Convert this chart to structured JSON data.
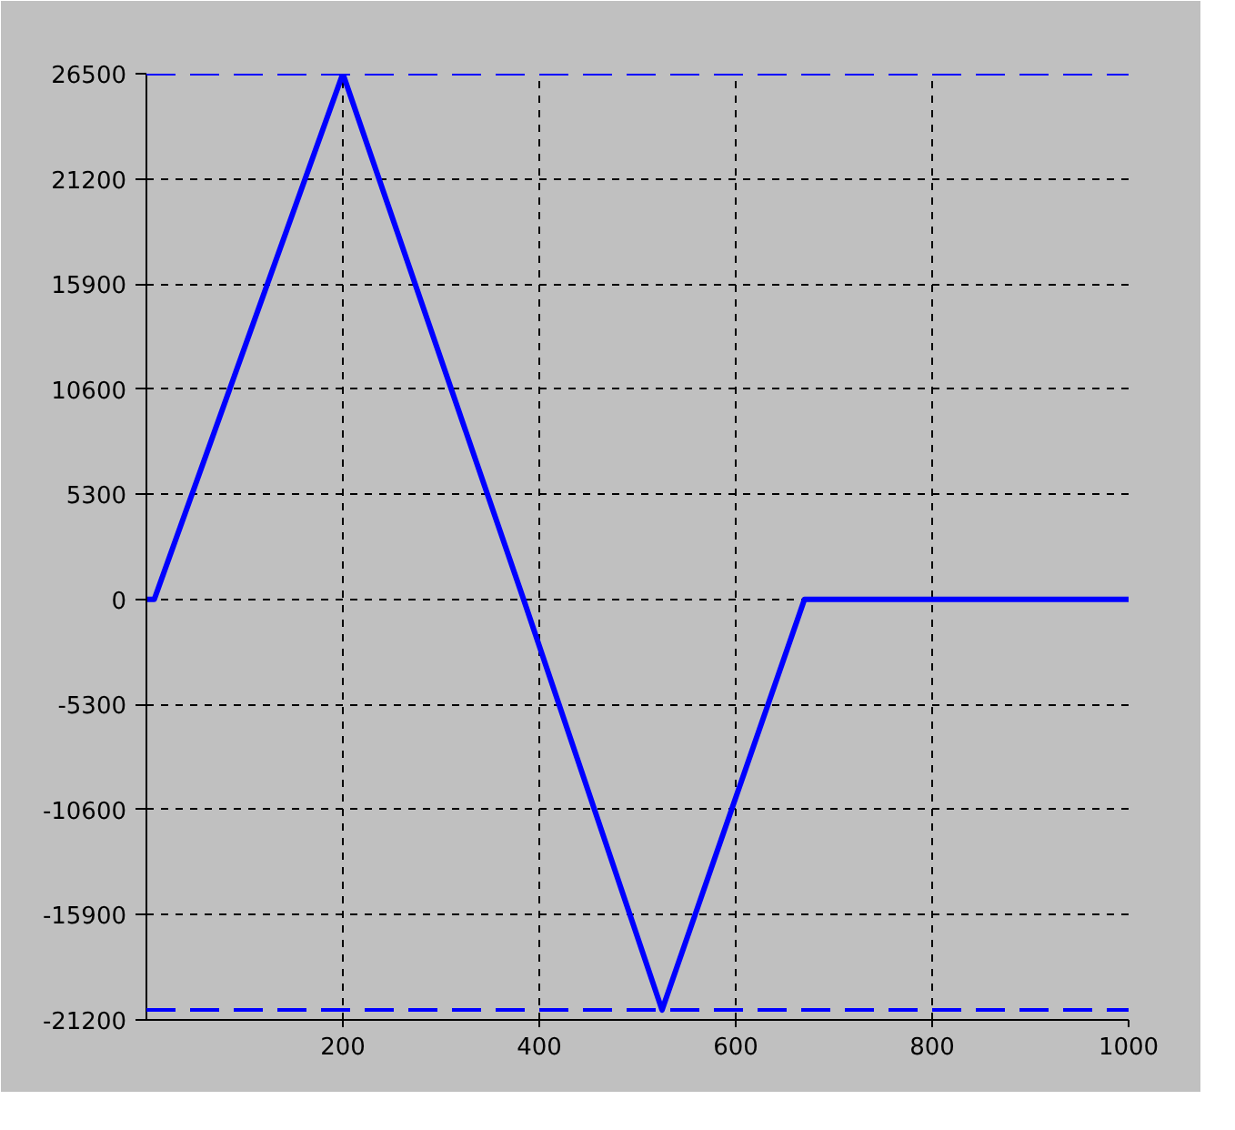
{
  "chart_data": {
    "type": "line",
    "x": [
      0,
      8,
      200,
      384,
      525,
      670,
      1000
    ],
    "series": [
      {
        "color": "#0000ff",
        "values": [
          0,
          0,
          26500,
          0,
          -20700,
          0,
          0
        ]
      }
    ],
    "xlim": [
      0,
      1000
    ],
    "xticks": [
      200,
      400,
      600,
      800,
      1000
    ],
    "ylim": [
      -21200,
      26500
    ],
    "yticks": [
      -21200,
      -15900,
      -10600,
      -5300,
      0,
      5300,
      10600,
      15900,
      21200,
      26500
    ],
    "grid": true,
    "marker": "none",
    "line_style": "solid",
    "ref_lines": [
      {
        "axis": "y",
        "value": 26500,
        "color": "#0000ff",
        "line_style": "dashed"
      },
      {
        "axis": "y",
        "value": -20700,
        "color": "#0000ff",
        "line_style": "dashed"
      }
    ]
  }
}
